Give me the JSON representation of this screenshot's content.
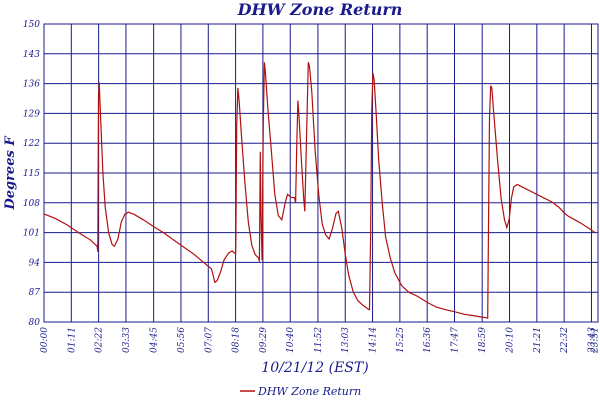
{
  "chart_data": {
    "type": "line",
    "title": "DHW Zone Return",
    "xlabel": "10/21/12 (EST)",
    "ylabel": "Degrees F",
    "ylim": [
      80,
      150
    ],
    "xlim": [
      0,
      24
    ],
    "grid": true,
    "legend": "bottom-center",
    "y_ticks": [
      "80",
      "87",
      "94",
      "101",
      "108",
      "115",
      "122",
      "129",
      "136",
      "143",
      "150"
    ],
    "x_ticks": [
      {
        "hour": 0.0,
        "label": "00:00"
      },
      {
        "hour": 1.183,
        "label": "01:11"
      },
      {
        "hour": 2.367,
        "label": "02:22"
      },
      {
        "hour": 3.55,
        "label": "03:33"
      },
      {
        "hour": 4.75,
        "label": "04:45"
      },
      {
        "hour": 5.933,
        "label": "05:56"
      },
      {
        "hour": 7.117,
        "label": "07:07"
      },
      {
        "hour": 8.3,
        "label": "08:18"
      },
      {
        "hour": 9.483,
        "label": "09:29"
      },
      {
        "hour": 10.667,
        "label": "10:40"
      },
      {
        "hour": 11.867,
        "label": "11:52"
      },
      {
        "hour": 13.05,
        "label": "13:03"
      },
      {
        "hour": 14.233,
        "label": "14:14"
      },
      {
        "hour": 15.417,
        "label": "15:25"
      },
      {
        "hour": 16.6,
        "label": "16:36"
      },
      {
        "hour": 17.783,
        "label": "17:47"
      },
      {
        "hour": 18.983,
        "label": "18:59"
      },
      {
        "hour": 20.167,
        "label": "20:10"
      },
      {
        "hour": 21.35,
        "label": "21:21"
      },
      {
        "hour": 22.533,
        "label": "22:32"
      },
      {
        "hour": 23.717,
        "label": "23:43"
      },
      {
        "hour": 23.85,
        "label": "23:51"
      }
    ],
    "series": [
      {
        "name": "DHW Zone Return",
        "color": "#b01010",
        "points": [
          [
            0.0,
            105.4
          ],
          [
            0.5,
            104.3
          ],
          [
            1.0,
            102.8
          ],
          [
            1.5,
            101.0
          ],
          [
            2.0,
            99.3
          ],
          [
            2.3,
            97.8
          ],
          [
            2.33,
            96.5
          ],
          [
            2.36,
            133.0
          ],
          [
            2.39,
            136.3
          ],
          [
            2.45,
            128.0
          ],
          [
            2.55,
            115.0
          ],
          [
            2.65,
            107.0
          ],
          [
            2.8,
            101.0
          ],
          [
            2.95,
            98.2
          ],
          [
            3.05,
            97.8
          ],
          [
            3.2,
            99.5
          ],
          [
            3.35,
            103.5
          ],
          [
            3.5,
            105.3
          ],
          [
            3.65,
            105.8
          ],
          [
            3.9,
            105.3
          ],
          [
            4.3,
            104.0
          ],
          [
            4.75,
            102.4
          ],
          [
            5.2,
            100.9
          ],
          [
            5.6,
            99.3
          ],
          [
            6.0,
            97.8
          ],
          [
            6.5,
            95.9
          ],
          [
            7.0,
            93.6
          ],
          [
            7.25,
            92.5
          ],
          [
            7.3,
            91.6
          ],
          [
            7.4,
            89.3
          ],
          [
            7.5,
            89.7
          ],
          [
            7.65,
            91.8
          ],
          [
            7.8,
            94.6
          ],
          [
            8.0,
            96.2
          ],
          [
            8.15,
            96.7
          ],
          [
            8.3,
            96.0
          ],
          [
            8.31,
            98.0
          ],
          [
            8.35,
            126.0
          ],
          [
            8.4,
            135.0
          ],
          [
            8.45,
            132.0
          ],
          [
            8.55,
            124.0
          ],
          [
            8.7,
            113.0
          ],
          [
            8.85,
            103.5
          ],
          [
            9.0,
            98.0
          ],
          [
            9.15,
            95.8
          ],
          [
            9.3,
            95.0
          ],
          [
            9.33,
            94.2
          ],
          [
            9.37,
            120.0
          ],
          [
            9.4,
            105.0
          ],
          [
            9.45,
            94.5
          ],
          [
            9.5,
            127.0
          ],
          [
            9.55,
            141.0
          ],
          [
            9.6,
            138.0
          ],
          [
            9.7,
            130.0
          ],
          [
            9.85,
            120.0
          ],
          [
            10.0,
            110.0
          ],
          [
            10.15,
            105.0
          ],
          [
            10.3,
            104.0
          ],
          [
            10.45,
            108.0
          ],
          [
            10.55,
            110.0
          ],
          [
            10.7,
            109.3
          ],
          [
            10.85,
            109.2
          ],
          [
            10.9,
            108.0
          ],
          [
            10.95,
            122.0
          ],
          [
            11.0,
            132.0
          ],
          [
            11.05,
            128.0
          ],
          [
            11.15,
            118.0
          ],
          [
            11.25,
            109.0
          ],
          [
            11.3,
            106.0
          ],
          [
            11.38,
            125.0
          ],
          [
            11.45,
            141.0
          ],
          [
            11.5,
            140.0
          ],
          [
            11.6,
            134.0
          ],
          [
            11.75,
            120.0
          ],
          [
            11.9,
            110.0
          ],
          [
            12.05,
            103.0
          ],
          [
            12.2,
            100.5
          ],
          [
            12.35,
            99.5
          ],
          [
            12.5,
            102.0
          ],
          [
            12.65,
            105.5
          ],
          [
            12.75,
            106.0
          ],
          [
            12.9,
            102.0
          ],
          [
            13.05,
            96.0
          ],
          [
            13.2,
            91.0
          ],
          [
            13.4,
            87.0
          ],
          [
            13.6,
            85.0
          ],
          [
            13.8,
            84.0
          ],
          [
            13.95,
            83.4
          ],
          [
            14.05,
            83.0
          ],
          [
            14.1,
            82.9
          ],
          [
            14.15,
            100.0
          ],
          [
            14.2,
            130.0
          ],
          [
            14.25,
            138.5
          ],
          [
            14.3,
            137.0
          ],
          [
            14.4,
            128.0
          ],
          [
            14.5,
            118.0
          ],
          [
            14.65,
            108.0
          ],
          [
            14.8,
            100.0
          ],
          [
            15.0,
            95.0
          ],
          [
            15.2,
            91.5
          ],
          [
            15.5,
            88.5
          ],
          [
            15.8,
            87.0
          ],
          [
            16.2,
            86.0
          ],
          [
            16.6,
            84.6
          ],
          [
            17.0,
            83.5
          ],
          [
            17.4,
            82.9
          ],
          [
            17.8,
            82.4
          ],
          [
            18.2,
            81.8
          ],
          [
            18.6,
            81.5
          ],
          [
            18.9,
            81.2
          ],
          [
            19.15,
            81.0
          ],
          [
            19.22,
            80.9
          ],
          [
            19.25,
            100.0
          ],
          [
            19.3,
            128.0
          ],
          [
            19.35,
            135.5
          ],
          [
            19.4,
            135.0
          ],
          [
            19.5,
            128.0
          ],
          [
            19.65,
            118.0
          ],
          [
            19.8,
            109.0
          ],
          [
            19.95,
            104.0
          ],
          [
            20.05,
            102.2
          ],
          [
            20.15,
            104.0
          ],
          [
            20.25,
            109.0
          ],
          [
            20.35,
            111.7
          ],
          [
            20.5,
            112.3
          ],
          [
            20.8,
            111.5
          ],
          [
            21.2,
            110.4
          ],
          [
            21.6,
            109.3
          ],
          [
            22.0,
            108.2
          ],
          [
            22.3,
            107.0
          ],
          [
            22.5,
            105.8
          ],
          [
            22.7,
            104.9
          ],
          [
            23.0,
            104.0
          ],
          [
            23.3,
            103.1
          ],
          [
            23.6,
            102.0
          ],
          [
            23.85,
            101.1
          ]
        ]
      }
    ]
  }
}
